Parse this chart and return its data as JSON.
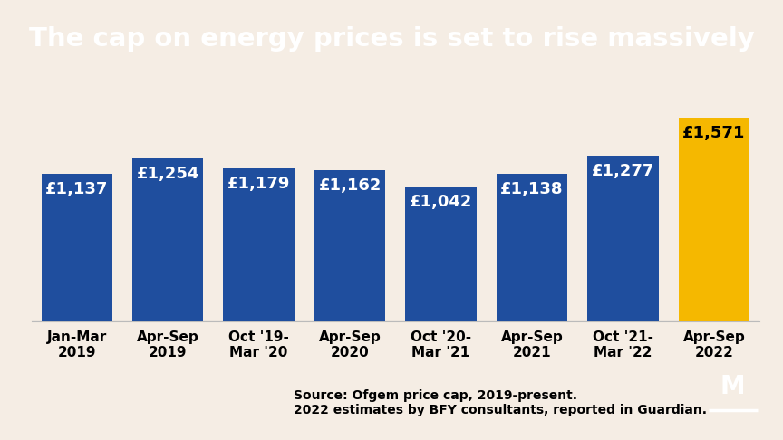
{
  "title": "The cap on energy prices is set to rise massively",
  "title_bg": "#000000",
  "title_color": "#ffffff",
  "bg_color": "#f5ede4",
  "categories": [
    "Jan-Mar\n2019",
    "Apr-Sep\n2019",
    "Oct '19-\nMar '20",
    "Apr-Sep\n2020",
    "Oct '20-\nMar '21",
    "Apr-Sep\n2021",
    "Oct '21-\nMar '22",
    "Apr-Sep\n2022"
  ],
  "values": [
    1137,
    1254,
    1179,
    1162,
    1042,
    1138,
    1277,
    1571
  ],
  "bar_colors": [
    "#1f4e9e",
    "#1f4e9e",
    "#1f4e9e",
    "#1f4e9e",
    "#1f4e9e",
    "#1f4e9e",
    "#1f4e9e",
    "#f5b800"
  ],
  "label_colors": [
    "#ffffff",
    "#ffffff",
    "#ffffff",
    "#ffffff",
    "#ffffff",
    "#ffffff",
    "#ffffff",
    "#000000"
  ],
  "value_labels": [
    "£1,137",
    "£1,254",
    "£1,179",
    "£1,162",
    "£1,042",
    "£1,138",
    "£1,277",
    "£1,571"
  ],
  "source_line1": "Source: Ofgem price cap, 2019-present.",
  "source_line2": "2022 estimates by BFY consultants, reported in Guardian.",
  "ylim": [
    0,
    1800
  ],
  "label_fontsize": 13,
  "tick_fontsize": 11,
  "source_fontsize": 10,
  "title_fontsize": 21
}
